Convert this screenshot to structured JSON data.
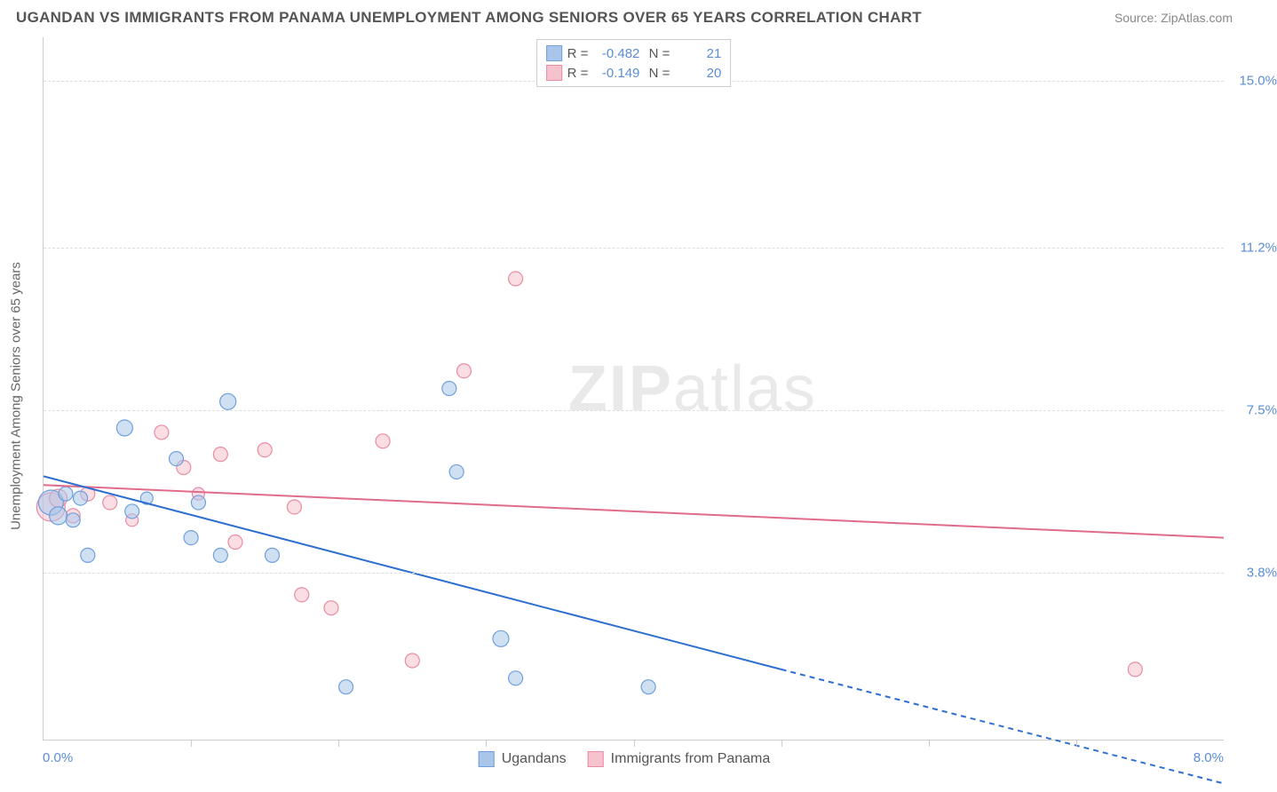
{
  "header": {
    "title": "UGANDAN VS IMMIGRANTS FROM PANAMA UNEMPLOYMENT AMONG SENIORS OVER 65 YEARS CORRELATION CHART",
    "source": "Source: ZipAtlas.com"
  },
  "watermark": {
    "zip": "ZIP",
    "atlas": "atlas"
  },
  "chart": {
    "type": "scatter-with-regression",
    "ylabel": "Unemployment Among Seniors over 65 years",
    "xlim": [
      0.0,
      8.0
    ],
    "ylim": [
      0.0,
      16.0
    ],
    "xticks_minor": [
      1.0,
      2.0,
      3.0,
      4.0,
      5.0,
      6.0,
      7.0
    ],
    "x_axis_labels": {
      "min": "0.0%",
      "max": "8.0%"
    },
    "y_axis_labels": [
      {
        "value": 15.0,
        "text": "15.0%"
      },
      {
        "value": 11.2,
        "text": "11.2%"
      },
      {
        "value": 7.5,
        "text": "7.5%"
      },
      {
        "value": 3.8,
        "text": "3.8%"
      }
    ],
    "gridlines_y": [
      15.0,
      11.2,
      7.5,
      3.8
    ],
    "background_color": "#ffffff",
    "grid_color": "#dddddd",
    "axis_color": "#cccccc",
    "label_color": "#5b8dd6"
  },
  "series": {
    "ugandans": {
      "label": "Ugandans",
      "color_fill": "#a9c6ea",
      "color_stroke": "#6fa0dc",
      "line_color": "#2f6fd0",
      "R": "-0.482",
      "N": "21",
      "regression": {
        "x1": 0.0,
        "y1": 6.0,
        "x2": 5.0,
        "y2": 1.6,
        "extrap_x2": 8.0,
        "extrap_y2": -1.0
      },
      "points": [
        {
          "x": 0.05,
          "y": 5.4,
          "r": 14
        },
        {
          "x": 0.1,
          "y": 5.1,
          "r": 10
        },
        {
          "x": 0.15,
          "y": 5.6,
          "r": 8
        },
        {
          "x": 0.2,
          "y": 5.0,
          "r": 8
        },
        {
          "x": 0.25,
          "y": 5.5,
          "r": 8
        },
        {
          "x": 0.3,
          "y": 4.2,
          "r": 8
        },
        {
          "x": 0.55,
          "y": 7.1,
          "r": 9
        },
        {
          "x": 0.6,
          "y": 5.2,
          "r": 8
        },
        {
          "x": 0.9,
          "y": 6.4,
          "r": 8
        },
        {
          "x": 1.0,
          "y": 4.6,
          "r": 8
        },
        {
          "x": 1.05,
          "y": 5.4,
          "r": 8
        },
        {
          "x": 1.2,
          "y": 4.2,
          "r": 8
        },
        {
          "x": 1.25,
          "y": 7.7,
          "r": 9
        },
        {
          "x": 1.55,
          "y": 4.2,
          "r": 8
        },
        {
          "x": 2.05,
          "y": 1.2,
          "r": 8
        },
        {
          "x": 2.8,
          "y": 6.1,
          "r": 8
        },
        {
          "x": 2.75,
          "y": 8.0,
          "r": 8
        },
        {
          "x": 3.1,
          "y": 2.3,
          "r": 9
        },
        {
          "x": 3.2,
          "y": 1.4,
          "r": 8
        },
        {
          "x": 4.1,
          "y": 1.2,
          "r": 8
        },
        {
          "x": 0.7,
          "y": 5.5,
          "r": 7
        }
      ]
    },
    "panama": {
      "label": "Immigrants from Panama",
      "color_fill": "#f5c2cd",
      "color_stroke": "#e98ba3",
      "line_color": "#e06b8b",
      "R": "-0.149",
      "N": "20",
      "regression": {
        "x1": 0.0,
        "y1": 5.8,
        "x2": 8.0,
        "y2": 4.6
      },
      "points": [
        {
          "x": 0.05,
          "y": 5.3,
          "r": 16
        },
        {
          "x": 0.1,
          "y": 5.5,
          "r": 10
        },
        {
          "x": 0.3,
          "y": 5.6,
          "r": 8
        },
        {
          "x": 0.45,
          "y": 5.4,
          "r": 8
        },
        {
          "x": 0.8,
          "y": 7.0,
          "r": 8
        },
        {
          "x": 0.95,
          "y": 6.2,
          "r": 8
        },
        {
          "x": 1.2,
          "y": 6.5,
          "r": 8
        },
        {
          "x": 1.3,
          "y": 4.5,
          "r": 8
        },
        {
          "x": 1.5,
          "y": 6.6,
          "r": 8
        },
        {
          "x": 1.7,
          "y": 5.3,
          "r": 8
        },
        {
          "x": 1.75,
          "y": 3.3,
          "r": 8
        },
        {
          "x": 1.95,
          "y": 3.0,
          "r": 8
        },
        {
          "x": 2.3,
          "y": 6.8,
          "r": 8
        },
        {
          "x": 2.5,
          "y": 1.8,
          "r": 8
        },
        {
          "x": 2.85,
          "y": 8.4,
          "r": 8
        },
        {
          "x": 3.2,
          "y": 10.5,
          "r": 8
        },
        {
          "x": 7.4,
          "y": 1.6,
          "r": 8
        },
        {
          "x": 0.6,
          "y": 5.0,
          "r": 7
        },
        {
          "x": 1.05,
          "y": 5.6,
          "r": 7
        },
        {
          "x": 0.2,
          "y": 5.1,
          "r": 8
        }
      ]
    }
  },
  "legend_bottom": [
    {
      "key": "ugandans",
      "label": "Ugandans"
    },
    {
      "key": "panama",
      "label": "Immigrants from Panama"
    }
  ]
}
